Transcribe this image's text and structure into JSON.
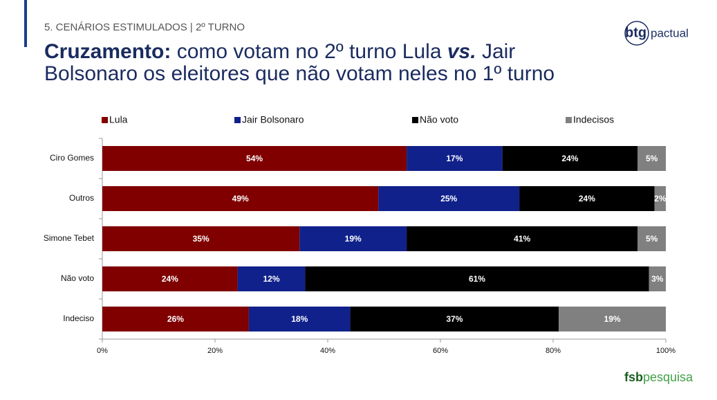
{
  "header": {
    "section": "5. CENÁRIOS ESTIMULADOS | 2º TURNO",
    "title_bold": "Cruzamento:",
    "title_line1": "como votam no 2º turno Lula",
    "title_vs": "vs.",
    "title_line1_end": "Jair",
    "title_line2": "Bolsonaro os eleitores que não votam neles no 1º turno"
  },
  "logos": {
    "btg": "btg",
    "pactual": "pactual",
    "fsb": "fsb",
    "pesquisa": "pesquisa"
  },
  "chart_data": {
    "type": "stacked-barh",
    "categories": [
      "Ciro Gomes",
      "Outros",
      "Simone Tebet",
      "Não voto",
      "Indeciso"
    ],
    "series": [
      {
        "name": "Lula",
        "color": "#800000",
        "values": [
          54,
          49,
          35,
          24,
          26
        ],
        "value_labels": [
          "54%",
          "49%",
          "35%",
          "24%",
          "26%"
        ]
      },
      {
        "name": "Jair Bolsonaro",
        "color": "#10218b",
        "values": [
          17,
          25,
          19,
          12,
          18
        ],
        "value_labels": [
          "17%",
          "25%",
          "19%",
          "12%",
          "18%"
        ]
      },
      {
        "name": "Não voto",
        "color": "#000000",
        "values": [
          24,
          24,
          41,
          61,
          37
        ],
        "value_labels": [
          "24%",
          "24%",
          "41%",
          "61%",
          "37%"
        ]
      },
      {
        "name": "Indecisos",
        "color": "#808080",
        "values": [
          5,
          2,
          5,
          3,
          19
        ],
        "value_labels": [
          "5%",
          "2%",
          "5%",
          "3%",
          "19%"
        ]
      }
    ],
    "xlim": [
      0,
      100
    ],
    "xticks": [
      {
        "value": 0,
        "label": "0%"
      },
      {
        "value": 20,
        "label": "20%"
      },
      {
        "value": 40,
        "label": "40%"
      },
      {
        "value": 60,
        "label": "60%"
      },
      {
        "value": 80,
        "label": "80%"
      },
      {
        "value": 100,
        "label": "100%"
      }
    ],
    "legend": "top"
  }
}
